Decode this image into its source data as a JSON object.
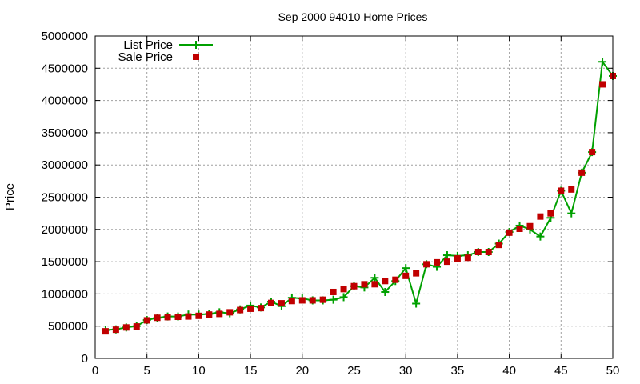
{
  "chart_data": {
    "type": "line",
    "title": "Sep 2000 94010 Home Prices",
    "xlabel": "",
    "ylabel": "Price",
    "xlim": [
      0,
      50
    ],
    "ylim": [
      0,
      5000000
    ],
    "x_ticks": [
      0,
      5,
      10,
      15,
      20,
      25,
      30,
      35,
      40,
      45,
      50
    ],
    "y_ticks": [
      0,
      500000,
      1000000,
      1500000,
      2000000,
      2500000,
      3000000,
      3500000,
      4000000,
      4500000,
      5000000
    ],
    "grid": true,
    "legend_position": "top-left",
    "x": [
      1,
      2,
      3,
      4,
      5,
      6,
      7,
      8,
      9,
      10,
      11,
      12,
      13,
      14,
      15,
      16,
      17,
      18,
      19,
      20,
      21,
      22,
      23,
      24,
      25,
      26,
      27,
      28,
      29,
      30,
      31,
      32,
      33,
      34,
      35,
      36,
      37,
      38,
      39,
      40,
      41,
      42,
      43,
      44,
      45,
      46,
      47,
      48,
      49,
      50
    ],
    "series": [
      {
        "name": "List Price",
        "style": "line-points",
        "color": "#00a000",
        "marker": "plus",
        "values": [
          440000,
          450000,
          480000,
          500000,
          595000,
          630000,
          650000,
          650000,
          680000,
          680000,
          690000,
          715000,
          700000,
          760000,
          820000,
          790000,
          880000,
          810000,
          940000,
          930000,
          900000,
          900000,
          910000,
          950000,
          1120000,
          1100000,
          1250000,
          1030000,
          1200000,
          1400000,
          850000,
          1460000,
          1420000,
          1600000,
          1590000,
          1600000,
          1650000,
          1650000,
          1780000,
          1960000,
          2060000,
          2000000,
          1890000,
          2180000,
          2600000,
          2250000,
          2880000,
          3200000,
          4600000,
          4380000
        ]
      },
      {
        "name": "Sale Price",
        "style": "points",
        "color": "#c00000",
        "marker": "square",
        "values": [
          420000,
          445000,
          480000,
          495000,
          590000,
          630000,
          640000,
          645000,
          650000,
          660000,
          680000,
          690000,
          715000,
          750000,
          770000,
          780000,
          860000,
          855000,
          890000,
          900000,
          900000,
          910000,
          1030000,
          1075000,
          1120000,
          1150000,
          1150000,
          1200000,
          1220000,
          1280000,
          1320000,
          1460000,
          1490000,
          1500000,
          1550000,
          1560000,
          1650000,
          1650000,
          1760000,
          1950000,
          2010000,
          2050000,
          2200000,
          2250000,
          2600000,
          2620000,
          2880000,
          3200000,
          4250000,
          4380000
        ]
      }
    ]
  }
}
